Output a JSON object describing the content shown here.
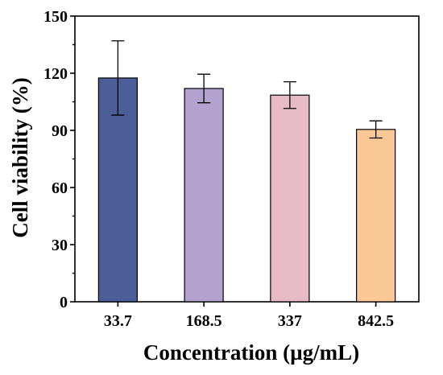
{
  "chart_data": {
    "type": "bar",
    "xlabel": "Concentration (µg/mL)",
    "ylabel": "Cell viability (%)",
    "categories": [
      "33.7",
      "168.5",
      "337",
      "842.5"
    ],
    "values": [
      117.5,
      112.0,
      108.5,
      90.5
    ],
    "errors": [
      19.5,
      7.5,
      7.0,
      4.5
    ],
    "colors": [
      "#4b5e98",
      "#b3a2cd",
      "#e6bbc6",
      "#f9c896"
    ],
    "ylim": [
      0,
      150
    ],
    "yticks": [
      0,
      30,
      60,
      90,
      120,
      150
    ],
    "grid": false,
    "legend": "none"
  }
}
